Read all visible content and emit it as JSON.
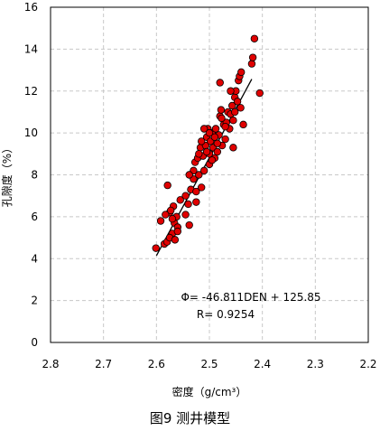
{
  "chart_data": {
    "type": "scatter",
    "xlabel": "密度（g/cm³）",
    "ylabel": "孔隙度（%）",
    "xlim": [
      2.8,
      2.2
    ],
    "ylim": [
      0,
      16
    ],
    "x_ticks": [
      "2.8",
      "2.7",
      "2.6",
      "2.5",
      "2.4",
      "2.3",
      "2.2"
    ],
    "y_ticks": [
      "0",
      "2",
      "4",
      "6",
      "8",
      "10",
      "12",
      "14",
      "16"
    ],
    "x_reversed": true,
    "grid": true,
    "marker_color": "#e00000",
    "marker_edge": "#000000",
    "fit_line": {
      "slope": -46.811,
      "intercept": 125.85,
      "x_range": [
        2.6,
        2.42
      ]
    },
    "equation": "Φ= -46.811DEN + 125.85",
    "r_text": "R= 0.9254",
    "points": [
      [
        2.601,
        4.5
      ],
      [
        2.592,
        5.8
      ],
      [
        2.585,
        4.7
      ],
      [
        2.58,
        4.8
      ],
      [
        2.575,
        6.2
      ],
      [
        2.579,
        7.5
      ],
      [
        2.57,
        5.2
      ],
      [
        2.575,
        5.0
      ],
      [
        2.566,
        5.7
      ],
      [
        2.56,
        5.5
      ],
      [
        2.568,
        6.5
      ],
      [
        2.562,
        6.0
      ],
      [
        2.555,
        6.8
      ],
      [
        2.565,
        4.9
      ],
      [
        2.573,
        6.3
      ],
      [
        2.583,
        6.1
      ],
      [
        2.56,
        5.3
      ],
      [
        2.57,
        5.9
      ],
      [
        2.545,
        6.1
      ],
      [
        2.54,
        6.6
      ],
      [
        2.538,
        5.6
      ],
      [
        2.535,
        7.3
      ],
      [
        2.53,
        7.8
      ],
      [
        2.527,
        8.6
      ],
      [
        2.525,
        7.2
      ],
      [
        2.522,
        8.8
      ],
      [
        2.52,
        8.0
      ],
      [
        2.517,
        9.3
      ],
      [
        2.515,
        7.4
      ],
      [
        2.512,
        8.9
      ],
      [
        2.51,
        8.2
      ],
      [
        2.507,
        9.4
      ],
      [
        2.505,
        9.8
      ],
      [
        2.503,
        10.2
      ],
      [
        2.5,
        9.0
      ],
      [
        2.498,
        9.6
      ],
      [
        2.495,
        10.0
      ],
      [
        2.493,
        9.3
      ],
      [
        2.49,
        8.8
      ],
      [
        2.488,
        10.2
      ],
      [
        2.485,
        9.1
      ],
      [
        2.482,
        9.9
      ],
      [
        2.48,
        10.8
      ],
      [
        2.478,
        11.1
      ],
      [
        2.476,
        9.4
      ],
      [
        2.473,
        10.4
      ],
      [
        2.47,
        9.7
      ],
      [
        2.468,
        10.5
      ],
      [
        2.465,
        11.0
      ],
      [
        2.462,
        10.2
      ],
      [
        2.46,
        10.9
      ],
      [
        2.457,
        11.3
      ],
      [
        2.455,
        10.6
      ],
      [
        2.452,
        11.7
      ],
      [
        2.45,
        12.0
      ],
      [
        2.447,
        11.5
      ],
      [
        2.445,
        12.5
      ],
      [
        2.443,
        12.7
      ],
      [
        2.44,
        12.9
      ],
      [
        2.436,
        10.4
      ],
      [
        2.42,
        13.3
      ],
      [
        2.418,
        13.6
      ],
      [
        2.415,
        14.5
      ],
      [
        2.405,
        11.9
      ],
      [
        2.48,
        12.4
      ],
      [
        2.455,
        9.3
      ],
      [
        2.51,
        10.2
      ],
      [
        2.52,
        9.0
      ],
      [
        2.5,
        8.5
      ],
      [
        2.53,
        8.2
      ],
      [
        2.545,
        7.0
      ],
      [
        2.525,
        6.7
      ],
      [
        2.538,
        8.0
      ],
      [
        2.505,
        9.1
      ],
      [
        2.495,
        8.7
      ],
      [
        2.485,
        9.5
      ],
      [
        2.47,
        10.3
      ],
      [
        2.452,
        11.0
      ],
      [
        2.515,
        9.6
      ],
      [
        2.5,
        10.0
      ],
      [
        2.49,
        9.8
      ],
      [
        2.477,
        10.7
      ],
      [
        2.46,
        12.0
      ],
      [
        2.441,
        11.2
      ]
    ]
  },
  "caption": "图9 测井模型"
}
